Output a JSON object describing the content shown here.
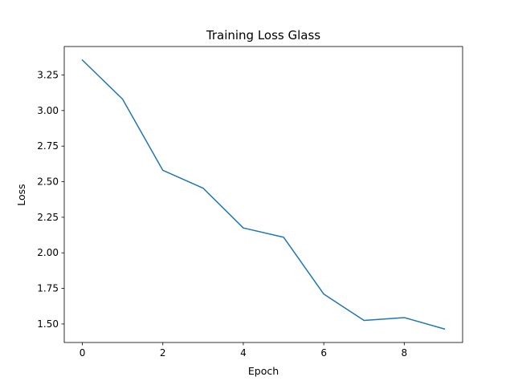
{
  "chart_data": {
    "type": "line",
    "title": "Training Loss Glass",
    "xlabel": "Epoch",
    "ylabel": "Loss",
    "x": [
      0,
      1,
      2,
      3,
      4,
      5,
      6,
      7,
      8,
      9
    ],
    "series": [
      {
        "values": [
          3.355,
          3.08,
          2.58,
          2.455,
          2.175,
          2.11,
          1.71,
          1.525,
          1.545,
          1.465
        ],
        "color": "#1f77b4"
      }
    ],
    "xlim": [
      -0.45,
      9.45
    ],
    "ylim": [
      1.37,
      3.45
    ],
    "xticks": [
      0,
      2,
      4,
      6,
      8
    ],
    "xtick_labels": [
      "0",
      "2",
      "4",
      "6",
      "8"
    ],
    "yticks": [
      1.5,
      1.75,
      2.0,
      2.25,
      2.5,
      2.75,
      3.0,
      3.25
    ],
    "ytick_labels": [
      "1.50",
      "1.75",
      "2.00",
      "2.25",
      "2.50",
      "2.75",
      "3.00",
      "3.25"
    ],
    "grid": false,
    "legend": false
  }
}
